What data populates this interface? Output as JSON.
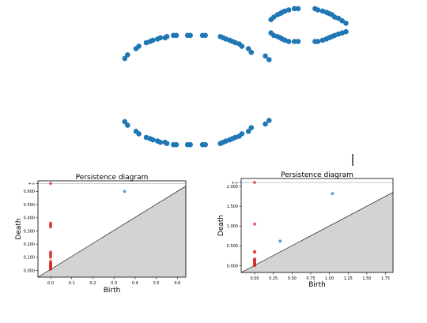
{
  "colors": {
    "cloud": "#1f77b4",
    "h0": "#d62728",
    "h1": "#1f77b4",
    "shade": "#d3d3d3",
    "diagonal": "#000000"
  },
  "chart_data": [
    {
      "type": "scatter",
      "title": "",
      "xlabel": "",
      "ylabel": "",
      "axes_visible": false,
      "xlim": [
        -1.1,
        1.6
      ],
      "ylim": [
        -0.65,
        0.65
      ],
      "series": [
        {
          "x": [
            -0.95,
            -0.92,
            -0.83,
            -0.8,
            -0.72,
            -0.68,
            -0.65,
            -0.6,
            -0.57,
            -0.52,
            -0.5,
            -0.43,
            -0.4,
            -0.28,
            -0.25,
            -0.12,
            -0.09,
            0.07,
            0.1,
            0.13,
            0.17,
            0.2,
            0.23,
            0.27,
            0.3,
            0.37,
            0.4,
            0.55,
            0.59,
            -0.95,
            -0.92,
            -0.83,
            -0.8,
            -0.72,
            -0.68,
            -0.65,
            -0.6,
            -0.57,
            -0.52,
            -0.5,
            -0.43,
            -0.4,
            -0.28,
            -0.25,
            -0.12,
            -0.09,
            0.07,
            0.1,
            0.13,
            0.17,
            0.2,
            0.23,
            0.27,
            0.3,
            0.37,
            0.4,
            0.55,
            0.59,
            0.61,
            0.64,
            0.68,
            0.71,
            0.73,
            0.76,
            0.8,
            0.86,
            0.9,
            1.08,
            1.11,
            1.16,
            1.2,
            1.23,
            1.26,
            1.29,
            1.33,
            1.37,
            1.41,
            0.61,
            0.64,
            0.68,
            0.71,
            0.73,
            0.76,
            0.8,
            0.86,
            0.9,
            1.08,
            1.11,
            1.16,
            1.2,
            1.23,
            1.26,
            1.29,
            1.33,
            1.37,
            1.41
          ],
          "y": [
            0.26,
            0.29,
            0.34,
            0.36,
            0.39,
            0.4,
            0.41,
            0.42,
            0.43,
            0.43,
            0.44,
            0.45,
            0.45,
            0.45,
            0.45,
            0.45,
            0.45,
            0.44,
            0.43,
            0.42,
            0.41,
            0.4,
            0.39,
            0.38,
            0.36,
            0.34,
            0.31,
            0.28,
            0.25,
            -0.26,
            -0.29,
            -0.34,
            -0.36,
            -0.39,
            -0.4,
            -0.41,
            -0.42,
            -0.43,
            -0.43,
            -0.44,
            -0.45,
            -0.45,
            -0.45,
            -0.45,
            -0.45,
            -0.45,
            -0.44,
            -0.43,
            -0.42,
            -0.41,
            -0.4,
            -0.39,
            -0.38,
            -0.36,
            -0.34,
            -0.31,
            -0.28,
            -0.25,
            0.58,
            0.6,
            0.62,
            0.63,
            0.64,
            0.65,
            0.66,
            0.67,
            0.67,
            0.67,
            0.66,
            0.65,
            0.64,
            0.63,
            0.62,
            0.6,
            0.59,
            0.57,
            0.55,
            0.47,
            0.45,
            0.44,
            0.43,
            0.42,
            0.41,
            0.4,
            0.4,
            0.4,
            0.4,
            0.4,
            0.41,
            0.42,
            0.43,
            0.44,
            0.45,
            0.46,
            0.47,
            0.48
          ]
        }
      ]
    },
    {
      "type": "scatter",
      "title": "Persistence diagram",
      "xlabel": "Birth",
      "ylabel": "Death",
      "xlim": [
        -0.06,
        0.64
      ],
      "ylim": [
        -0.05,
        0.68
      ],
      "x_ticks": [
        0.0,
        0.1,
        0.2,
        0.3,
        0.4,
        0.5,
        0.6
      ],
      "x_tick_labels": [
        "0.0",
        "0.1",
        "0.2",
        "0.3",
        "0.4",
        "0.5",
        "0.6"
      ],
      "y_ticks": [
        0.0,
        0.1,
        0.2,
        0.3,
        0.4,
        0.5,
        0.6,
        0.66
      ],
      "y_tick_labels": [
        "0.000",
        "0.100",
        "0.200",
        "0.300",
        "0.400",
        "0.500",
        "0.600",
        "+∞"
      ],
      "inf_value": 0.66,
      "series": [
        {
          "dimension": "H0",
          "x": [
            0,
            0,
            0,
            0,
            0,
            0,
            0,
            0,
            0,
            0,
            0,
            0,
            0,
            0,
            0,
            0,
            0,
            0,
            0,
            0,
            0,
            0
          ],
          "y": [
            0.66,
            0.36,
            0.35,
            0.34,
            0.33,
            0.14,
            0.13,
            0.12,
            0.11,
            0.1,
            0.07,
            0.06,
            0.055,
            0.05,
            0.045,
            0.04,
            0.035,
            0.03,
            0.025,
            0.02,
            0.015,
            0.01
          ]
        },
        {
          "dimension": "H1",
          "x": [
            0.35
          ],
          "y": [
            0.6
          ]
        }
      ]
    },
    {
      "type": "scatter",
      "title": "Persistence diagram",
      "xlabel": "Birth",
      "ylabel": "Death",
      "xlim": [
        -0.18,
        1.85
      ],
      "ylim": [
        -0.17,
        2.2
      ],
      "x_ticks": [
        0.0,
        0.25,
        0.5,
        0.75,
        1.0,
        1.25,
        1.5,
        1.75
      ],
      "x_tick_labels": [
        "0.00",
        "0.25",
        "0.50",
        "0.75",
        "1.00",
        "1.25",
        "1.50",
        "1.75"
      ],
      "y_ticks": [
        0.0,
        0.5,
        1.0,
        1.5,
        2.0,
        2.1
      ],
      "y_tick_labels": [
        "0.000",
        "0.500",
        "1.000",
        "1.500",
        "2.000",
        "+∞"
      ],
      "inf_value": 2.1,
      "series": [
        {
          "dimension": "H0",
          "x": [
            0,
            0,
            0,
            0,
            0,
            0,
            0,
            0,
            0,
            0,
            0,
            0,
            0,
            0,
            0,
            0
          ],
          "y": [
            2.1,
            1.05,
            0.36,
            0.34,
            0.17,
            0.15,
            0.13,
            0.11,
            0.09,
            0.07,
            0.05,
            0.04,
            0.03,
            0.02,
            0.01,
            0.005
          ]
        },
        {
          "dimension": "H1",
          "x": [
            0.34,
            1.04
          ],
          "y": [
            0.62,
            1.82
          ]
        }
      ]
    }
  ]
}
